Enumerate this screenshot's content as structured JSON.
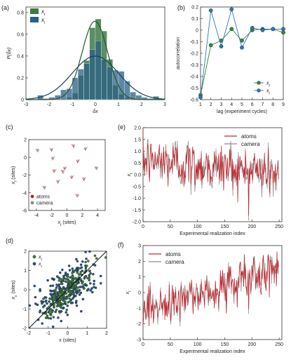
{
  "chart_data": [
    {
      "panel": "(a)",
      "type": "histogram",
      "xlabel": "δx",
      "ylabel": "P(δx)",
      "xlim": [
        -3,
        3
      ],
      "ylim": [
        0,
        0.85
      ],
      "xticks": [
        "-3",
        "-2",
        "-1",
        "0",
        "1",
        "2",
        "3"
      ],
      "yticks": [
        "0",
        "0.2",
        "0.4",
        "0.6",
        "0.8"
      ],
      "legend": [
        "x_t",
        "x_l"
      ],
      "legend_position": "top-left",
      "bin_edges": [
        -2.5,
        -2.25,
        -2.0,
        -1.75,
        -1.5,
        -1.25,
        -1.0,
        -0.75,
        -0.5,
        -0.25,
        0.0,
        0.25,
        0.5,
        0.75,
        1.0,
        1.25,
        1.5,
        1.75,
        2.0,
        2.25,
        2.5,
        2.75
      ],
      "series": [
        {
          "name": "x_t",
          "color": "#3e7a45",
          "values": [
            0.0,
            0.0,
            0.0,
            0.0,
            0.0,
            0.02,
            0.06,
            0.22,
            0.36,
            0.66,
            0.74,
            0.63,
            0.37,
            0.13,
            0.05,
            0.02,
            0.0,
            0.0,
            0.0,
            0.0,
            0.0
          ],
          "fit_mu": -0.02,
          "fit_sigma": 0.55,
          "fit_amp": 0.72
        },
        {
          "name": "x_l",
          "color": "#2a5f86",
          "values": [
            0.04,
            0.01,
            0.02,
            0.04,
            0.09,
            0.1,
            0.2,
            0.28,
            0.33,
            0.46,
            0.54,
            0.37,
            0.3,
            0.27,
            0.26,
            0.17,
            0.07,
            0.04,
            0.02,
            0.01,
            0.03
          ],
          "fit_mu": 0.0,
          "fit_sigma": 1.0,
          "fit_amp": 0.4
        }
      ]
    },
    {
      "panel": "(b)",
      "type": "line",
      "xlabel": "lag (experiment cycles)",
      "ylabel": "autocorrelation",
      "xlim": [
        1,
        9
      ],
      "ylim": [
        -0.6,
        0.2
      ],
      "xticks": [
        "1",
        "2",
        "3",
        "4",
        "5",
        "6",
        "7",
        "8",
        "9"
      ],
      "yticks": [
        "-0.6",
        "-0.5",
        "-0.4",
        "-0.3",
        "-0.2",
        "-0.1",
        "0",
        "0.1",
        "0.2"
      ],
      "legend": [
        "x_t",
        "x_l"
      ],
      "legend_position": "bottom-right",
      "x": [
        1,
        2,
        3,
        4,
        5,
        6,
        7,
        8,
        9
      ],
      "series": [
        {
          "name": "x_t",
          "color": "#2e8b3e",
          "values": [
            -0.56,
            -0.13,
            -0.09,
            0.01,
            -0.09,
            0.0,
            0.01,
            0.01,
            -0.02
          ]
        },
        {
          "name": "x_l",
          "color": "#2a78b5",
          "values": [
            -0.58,
            0.17,
            -0.14,
            0.18,
            -0.15,
            0.02,
            0.0,
            0.01,
            0.01
          ]
        }
      ]
    },
    {
      "panel": "(c)",
      "type": "scatter",
      "xlabel": "x_t (sites)",
      "ylabel": "x_l (sites)",
      "xlim": [
        -5,
        5
      ],
      "ylim": [
        -6,
        2
      ],
      "xticks": [
        "-4",
        "-2",
        "0",
        "2",
        "4"
      ],
      "yticks": [
        "-6",
        "-4",
        "-2",
        "0",
        "2"
      ],
      "legend": [
        "atoms",
        "camera"
      ],
      "legend_position": "bottom-left",
      "series": [
        {
          "name": "atoms",
          "color": "#b02a2a",
          "x": [
            -3.9,
            -2.0,
            -1.8,
            0.8,
            2.4,
            -1.7,
            -0.6,
            0.6,
            1.4,
            3.8,
            -1.2,
            2.2,
            -3.0,
            1.3,
            -0.3
          ],
          "y": [
            0.8,
            0.8,
            -0.1,
            1.3,
            0.9,
            -1.6,
            -1.6,
            -2.3,
            -0.5,
            -1.2,
            -2.8,
            -2.5,
            -3.4,
            -4.3,
            -1.3
          ]
        },
        {
          "name": "camera",
          "color": "#888888",
          "x": [
            -3.8,
            -2.1,
            -1.9,
            0.9,
            2.5,
            -1.6,
            -0.5,
            0.7,
            1.5,
            3.9,
            -1.1,
            2.3,
            -2.9,
            1.4,
            -0.2
          ],
          "y": [
            0.7,
            0.9,
            -0.2,
            1.2,
            1.0,
            -1.5,
            -1.7,
            -2.2,
            -0.4,
            -1.3,
            -2.7,
            -2.4,
            -3.5,
            -4.4,
            -1.2
          ]
        }
      ]
    },
    {
      "panel": "(d)",
      "type": "scatter",
      "xlabel": "x (sites)",
      "ylabel": "x_c (sites)",
      "xlim": [
        -2,
        2
      ],
      "ylim": [
        -2,
        2
      ],
      "xticks": [
        "-2",
        "-1",
        "0",
        "1",
        "2"
      ],
      "yticks": [
        "-2",
        "-1",
        "0",
        "1",
        "2"
      ],
      "legend": [
        "x_t",
        "x_l"
      ],
      "legend_position": "top-left",
      "series": [
        {
          "name": "x_t",
          "color": "#3e7a45",
          "n_points": 180,
          "slope": 1.0,
          "sigma_x": 0.55,
          "noise": 0.35
        },
        {
          "name": "x_l",
          "color": "#24567e",
          "n_points": 220,
          "slope": 0.55,
          "sigma_x": 0.85,
          "noise": 0.6
        }
      ],
      "reference_line": {
        "slope": 1,
        "intercept": 0
      }
    },
    {
      "panel": "(e)",
      "type": "line",
      "xlabel": "Experimental realization index",
      "ylabel": "x_t",
      "xlim": [
        0,
        255
      ],
      "ylim": [
        -2.0,
        2.0
      ],
      "xticks": [
        "0",
        "50",
        "100",
        "150",
        "200",
        "250"
      ],
      "yticks": [
        "-2.0",
        "-1.5",
        "-1.0",
        "-0.5",
        "0.0",
        "0.5",
        "1.0",
        "1.5",
        "2.0"
      ],
      "legend": [
        "atoms",
        "camera"
      ],
      "legend_position": "top-right",
      "n": 250,
      "trend_start": 0.6,
      "trend_end": 0.1,
      "noise": 0.5,
      "series": [
        {
          "name": "atoms",
          "color": "#c0272d"
        },
        {
          "name": "camera",
          "color": "#8c8c8c"
        }
      ]
    },
    {
      "panel": "(f)",
      "type": "line",
      "xlabel": "Experimental realization index",
      "ylabel": "x_l",
      "xlim": [
        0,
        255
      ],
      "ylim": [
        -3,
        3
      ],
      "xticks": [
        "0",
        "50",
        "100",
        "150",
        "200",
        "250"
      ],
      "yticks": [
        "-3",
        "-2",
        "-1",
        "0",
        "1",
        "2",
        "3"
      ],
      "legend": [
        "atoms",
        "camera"
      ],
      "legend_position": "top-left",
      "n": 250,
      "trend_start": -1.2,
      "trend_end": 1.5,
      "noise": 0.6,
      "series": [
        {
          "name": "atoms",
          "color": "#c0272d"
        },
        {
          "name": "camera",
          "color": "#8c8c8c"
        }
      ]
    }
  ]
}
